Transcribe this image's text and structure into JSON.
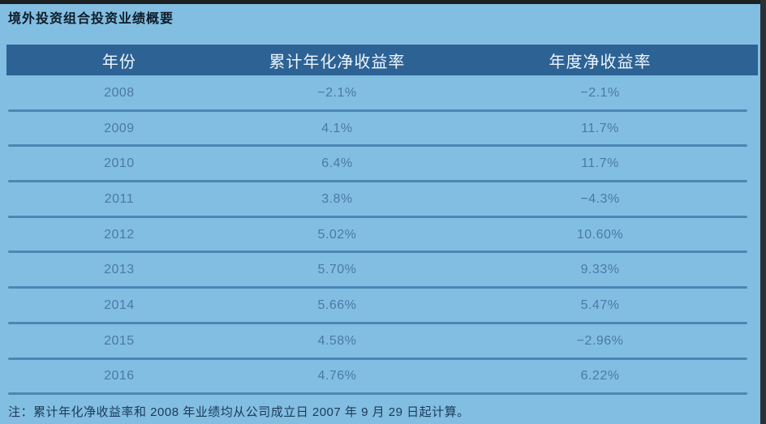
{
  "title": "境外投资组合投资业绩概要",
  "table": {
    "columns": [
      "年份",
      "累计年化净收益率",
      "年度净收益率"
    ],
    "rows": [
      [
        "2008",
        "−2.1%",
        "−2.1%"
      ],
      [
        "2009",
        "4.1%",
        "11.7%"
      ],
      [
        "2010",
        "6.4%",
        "11.7%"
      ],
      [
        "2011",
        "3.8%",
        "−4.3%"
      ],
      [
        "2012",
        "5.02%",
        "10.60%"
      ],
      [
        "2013",
        "5.70%",
        "9.33%"
      ],
      [
        "2014",
        "5.66%",
        "5.47%"
      ],
      [
        "2015",
        "4.58%",
        "−2.96%"
      ],
      [
        "2016",
        "4.76%",
        "6.22%"
      ]
    ]
  },
  "footnote": "注：累计年化净收益率和 2008 年业绩均从公司成立日 2007 年 9 月 29 日起计算。",
  "colors": {
    "page_background": "#82bee2",
    "header_background": "#2d6295",
    "header_text": "#eef5fb",
    "row_text": "#4a79a6",
    "separator_line": "#4c86b3",
    "title_text": "#0e1c28",
    "footnote_text": "#1c3a57",
    "top_strip": "#1d2023",
    "right_strip": "#2c3138"
  }
}
